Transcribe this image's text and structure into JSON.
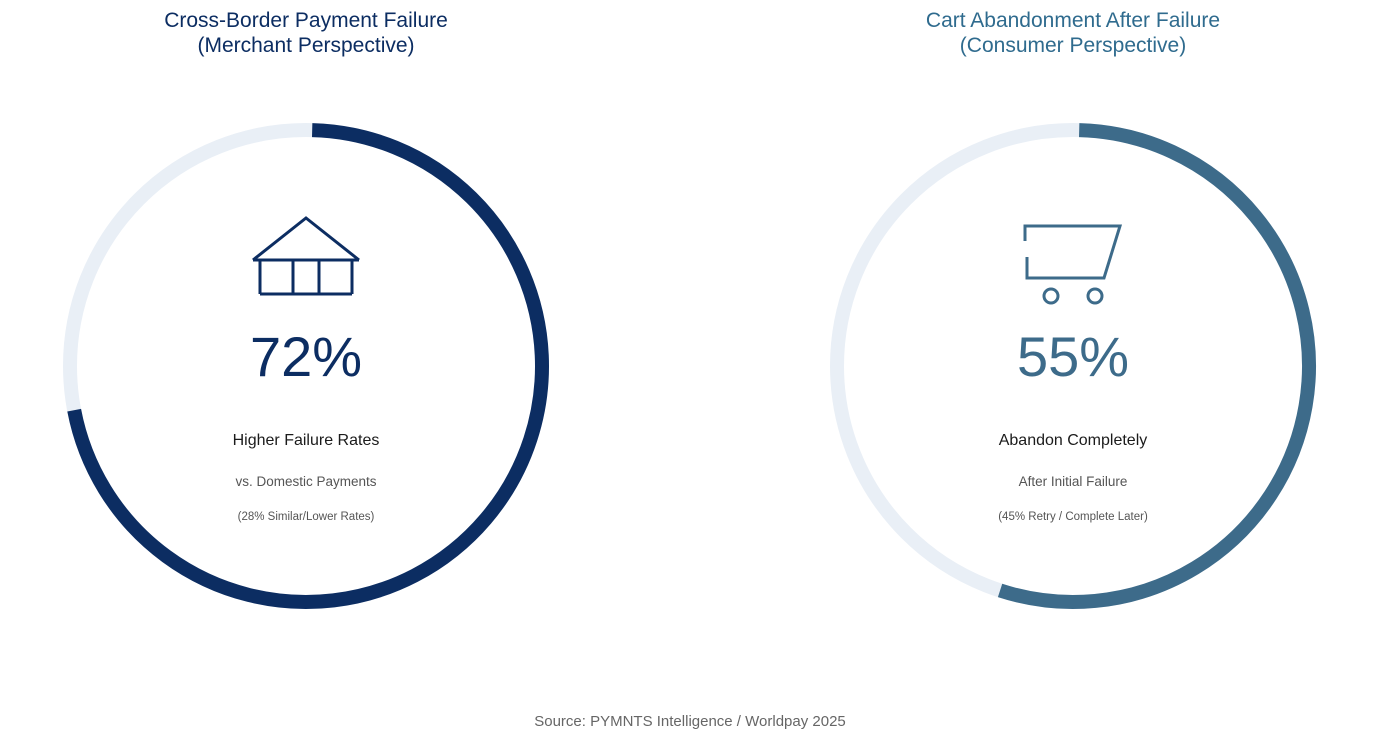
{
  "chart_data": [
    {
      "type": "pie",
      "title": [
        "Cross-Border Payment Failure",
        "(Merchant Perspective)"
      ],
      "value": 72,
      "unit": "%",
      "display_value": "72%",
      "label": "Higher Failure Rates",
      "sublabel": "vs. Domestic Payments",
      "note": "(28% Similar/Lower Rates)",
      "icon": "storefront-icon",
      "colors": {
        "accent": "#0c2d62",
        "track": "#e9eff6",
        "title": "#0c2d62"
      }
    },
    {
      "type": "pie",
      "title": [
        "Cart Abandonment After Failure",
        "(Consumer Perspective)"
      ],
      "value": 55,
      "unit": "%",
      "display_value": "55%",
      "label": "Abandon Completely",
      "sublabel": "After Initial Failure",
      "note": "(45% Retry / Complete Later)",
      "icon": "shopping-cart-icon",
      "colors": {
        "accent": "#3d6b8a",
        "track": "#e9eff6",
        "title": "#2f6b8e"
      }
    }
  ],
  "source": "Source: PYMNTS Intelligence / Worldpay 2025"
}
